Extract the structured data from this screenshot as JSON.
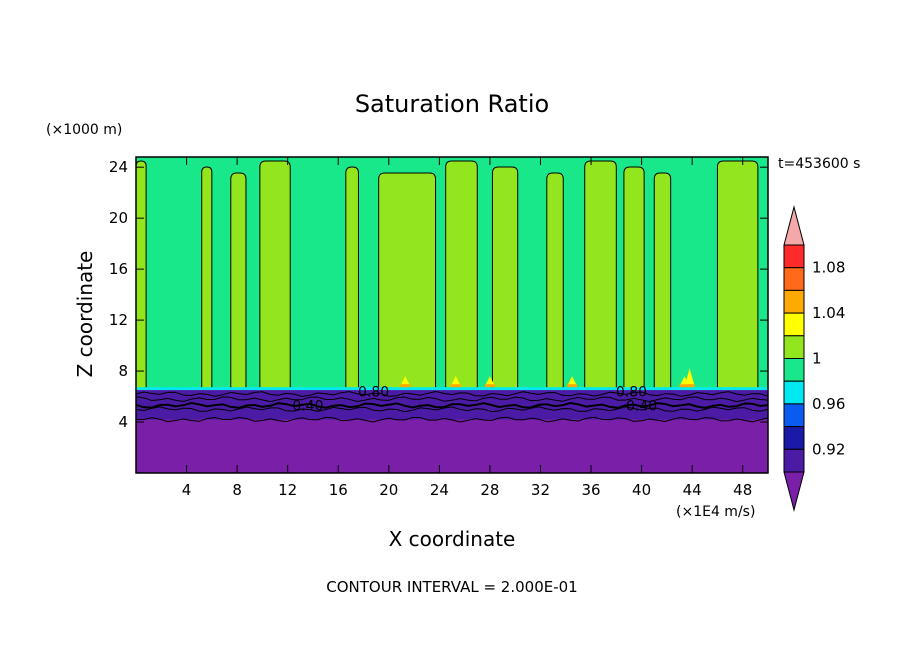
{
  "chart_data": {
    "type": "heatmap",
    "title": "Saturation Ratio",
    "xlabel": "X coordinate",
    "ylabel": "Z coordinate",
    "x_units": "(×1E4 m/s)",
    "y_units": "(×1000 m)",
    "time_label": "t=453600 s",
    "footer": "CONTOUR INTERVAL = 2.000E-01",
    "xlim": [
      0,
      50
    ],
    "ylim": [
      0,
      24.8
    ],
    "x_ticks": [
      4,
      8,
      12,
      16,
      20,
      24,
      28,
      32,
      36,
      40,
      44,
      48
    ],
    "y_ticks": [
      4,
      8,
      12,
      16,
      20,
      24
    ],
    "contour_labels": [
      {
        "text": "0.40",
        "x": 13.6,
        "y": 5.3
      },
      {
        "text": "0.80",
        "x": 18.8,
        "y": 6.4
      },
      {
        "text": "0.80",
        "x": 39.2,
        "y": 6.4
      },
      {
        "text": "0.40",
        "x": 40.0,
        "y": 5.3
      }
    ],
    "colorbar": {
      "tick_labels": [
        "1.08",
        "1.04",
        "1",
        "0.96",
        "0.92"
      ],
      "tick_values": [
        1.08,
        1.04,
        1.0,
        0.96,
        0.92
      ],
      "levels": [
        {
          "min": null,
          "max": 0.9,
          "color": "#7a1fa8",
          "arrow": true
        },
        {
          "min": 0.9,
          "max": 0.92,
          "color": "#4b1ba6"
        },
        {
          "min": 0.92,
          "max": 0.94,
          "color": "#1a1aa8"
        },
        {
          "min": 0.94,
          "max": 0.96,
          "color": "#0a5cf0"
        },
        {
          "min": 0.96,
          "max": 0.98,
          "color": "#00e8f0"
        },
        {
          "min": 0.98,
          "max": 1.0,
          "color": "#19e88a"
        },
        {
          "min": 1.0,
          "max": 1.02,
          "color": "#93e61e"
        },
        {
          "min": 1.02,
          "max": 1.04,
          "color": "#ffff00"
        },
        {
          "min": 1.04,
          "max": 1.06,
          "color": "#ffaa00"
        },
        {
          "min": 1.06,
          "max": 1.08,
          "color": "#ff6a1a"
        },
        {
          "min": 1.08,
          "max": 1.1,
          "color": "#ff2a2a"
        },
        {
          "min": 1.1,
          "max": null,
          "color": "#f4a8a8",
          "arrow": true
        }
      ]
    },
    "regions": {
      "lower_layer": {
        "value": "<0.90",
        "z_top": 6.5
      },
      "upper_layer": {
        "value": "0.98-1.00",
        "z_bottom": 6.5,
        "z_top": 24.8
      },
      "supersaturated_columns": [
        {
          "x0": 0.0,
          "x1": 0.8
        },
        {
          "x0": 5.2,
          "x1": 6.0
        },
        {
          "x0": 7.5,
          "x1": 8.7
        },
        {
          "x0": 9.8,
          "x1": 12.2
        },
        {
          "x0": 16.6,
          "x1": 17.6
        },
        {
          "x0": 19.2,
          "x1": 23.7
        },
        {
          "x0": 24.5,
          "x1": 27.0
        },
        {
          "x0": 28.2,
          "x1": 30.2
        },
        {
          "x0": 32.5,
          "x1": 33.8
        },
        {
          "x0": 35.5,
          "x1": 38.0
        },
        {
          "x0": 38.6,
          "x1": 40.2
        },
        {
          "x0": 41.0,
          "x1": 42.3
        },
        {
          "x0": 46.0,
          "x1": 49.2
        }
      ]
    }
  }
}
